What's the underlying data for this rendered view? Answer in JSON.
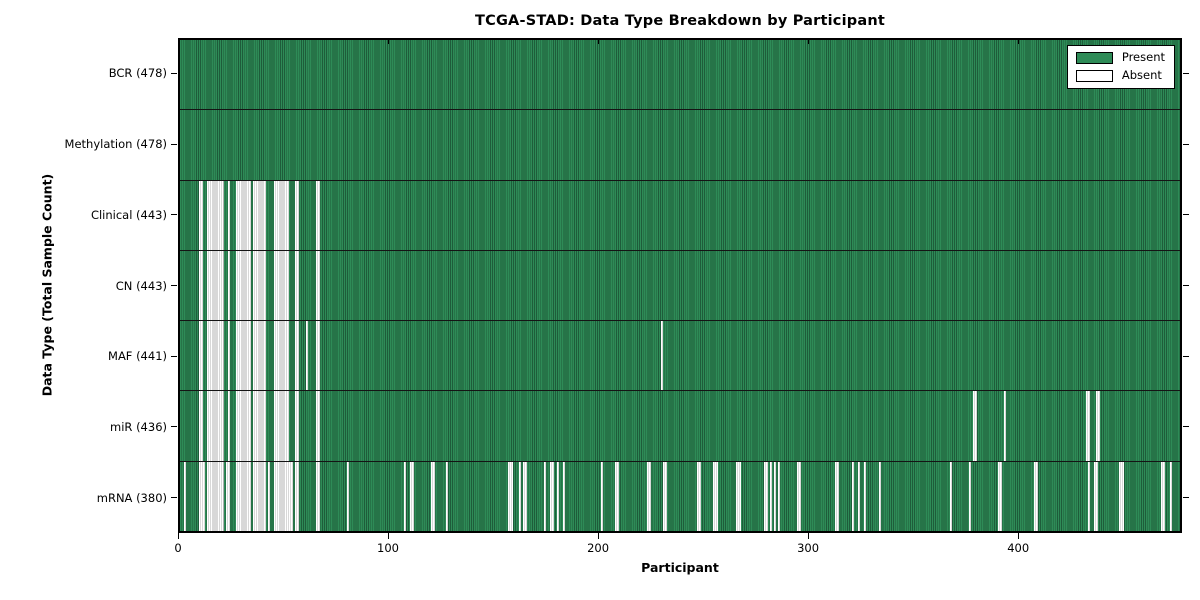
{
  "title": "TCGA-STAD: Data Type Breakdown by Participant",
  "colors": {
    "present": "#2e8b57",
    "present_edge": "#1e5c3a",
    "absent": "#ffffff",
    "absent_edge": "#b0b0b0",
    "axis": "#000000",
    "background": "#ffffff"
  },
  "chart_data": {
    "type": "heatmap",
    "title": "TCGA-STAD: Data Type Breakdown by Participant",
    "xlabel": "Participant",
    "ylabel": "Data Type (Total Sample Count)",
    "x_ticks": [
      0,
      100,
      200,
      300,
      400
    ],
    "x_range": [
      0,
      478
    ],
    "n_participants": 478,
    "grid": false,
    "legend": {
      "position": "upper right",
      "entries": [
        {
          "label": "Present",
          "color": "#2e8b57"
        },
        {
          "label": "Absent",
          "color": "#ffffff"
        }
      ]
    },
    "rows": [
      {
        "name": "BCR",
        "label": "BCR (478)",
        "present_count": 478,
        "absent_count": 0,
        "absent_ranges": []
      },
      {
        "name": "Methylation",
        "label": "Methylation (478)",
        "present_count": 478,
        "absent_count": 0,
        "absent_ranges": []
      },
      {
        "name": "Clinical",
        "label": "Clinical (443)",
        "present_count": 443,
        "absent_count": 35,
        "absent_ranges": [
          [
            9,
            10
          ],
          [
            13,
            20
          ],
          [
            23,
            23
          ],
          [
            27,
            33
          ],
          [
            35,
            40
          ],
          [
            45,
            51
          ],
          [
            55,
            56
          ],
          [
            65,
            66
          ]
        ]
      },
      {
        "name": "CN",
        "label": "CN (443)",
        "present_count": 443,
        "absent_count": 35,
        "absent_ranges": [
          [
            9,
            10
          ],
          [
            13,
            20
          ],
          [
            23,
            23
          ],
          [
            27,
            33
          ],
          [
            35,
            40
          ],
          [
            45,
            51
          ],
          [
            55,
            56
          ],
          [
            65,
            66
          ]
        ]
      },
      {
        "name": "MAF",
        "label": "MAF (441)",
        "present_count": 441,
        "absent_count": 37,
        "absent_ranges": [
          [
            9,
            10
          ],
          [
            13,
            20
          ],
          [
            23,
            23
          ],
          [
            27,
            33
          ],
          [
            35,
            40
          ],
          [
            45,
            51
          ],
          [
            55,
            56
          ],
          [
            60,
            60
          ],
          [
            65,
            66
          ],
          [
            230,
            230
          ]
        ]
      },
      {
        "name": "miR",
        "label": "miR (436)",
        "present_count": 436,
        "absent_count": 42,
        "absent_ranges": [
          [
            9,
            10
          ],
          [
            13,
            20
          ],
          [
            23,
            23
          ],
          [
            27,
            33
          ],
          [
            35,
            40
          ],
          [
            45,
            51
          ],
          [
            55,
            56
          ],
          [
            65,
            66
          ],
          [
            379,
            380
          ],
          [
            394,
            394
          ],
          [
            433,
            434
          ],
          [
            438,
            439
          ]
        ]
      },
      {
        "name": "mRNA",
        "label": "mRNA (380)",
        "present_count": 380,
        "absent_count": 98,
        "absent_ranges": [
          [
            2,
            2
          ],
          [
            9,
            11
          ],
          [
            13,
            20
          ],
          [
            22,
            23
          ],
          [
            27,
            33
          ],
          [
            35,
            40
          ],
          [
            42,
            42
          ],
          [
            45,
            51
          ],
          [
            52,
            53
          ],
          [
            55,
            56
          ],
          [
            65,
            66
          ],
          [
            80,
            80
          ],
          [
            107,
            107
          ],
          [
            110,
            111
          ],
          [
            120,
            121
          ],
          [
            127,
            127
          ],
          [
            157,
            158
          ],
          [
            162,
            162
          ],
          [
            164,
            165
          ],
          [
            174,
            174
          ],
          [
            177,
            178
          ],
          [
            180,
            180
          ],
          [
            183,
            183
          ],
          [
            201,
            201
          ],
          [
            208,
            209
          ],
          [
            223,
            224
          ],
          [
            231,
            232
          ],
          [
            247,
            248
          ],
          [
            255,
            256
          ],
          [
            266,
            267
          ],
          [
            279,
            280
          ],
          [
            282,
            282
          ],
          [
            284,
            284
          ],
          [
            286,
            286
          ],
          [
            295,
            296
          ],
          [
            313,
            314
          ],
          [
            321,
            321
          ],
          [
            324,
            324
          ],
          [
            327,
            327
          ],
          [
            334,
            334
          ],
          [
            368,
            368
          ],
          [
            377,
            377
          ],
          [
            391,
            392
          ],
          [
            408,
            409
          ],
          [
            434,
            434
          ],
          [
            437,
            438
          ],
          [
            449,
            450
          ],
          [
            469,
            470
          ],
          [
            473,
            473
          ]
        ]
      }
    ]
  }
}
